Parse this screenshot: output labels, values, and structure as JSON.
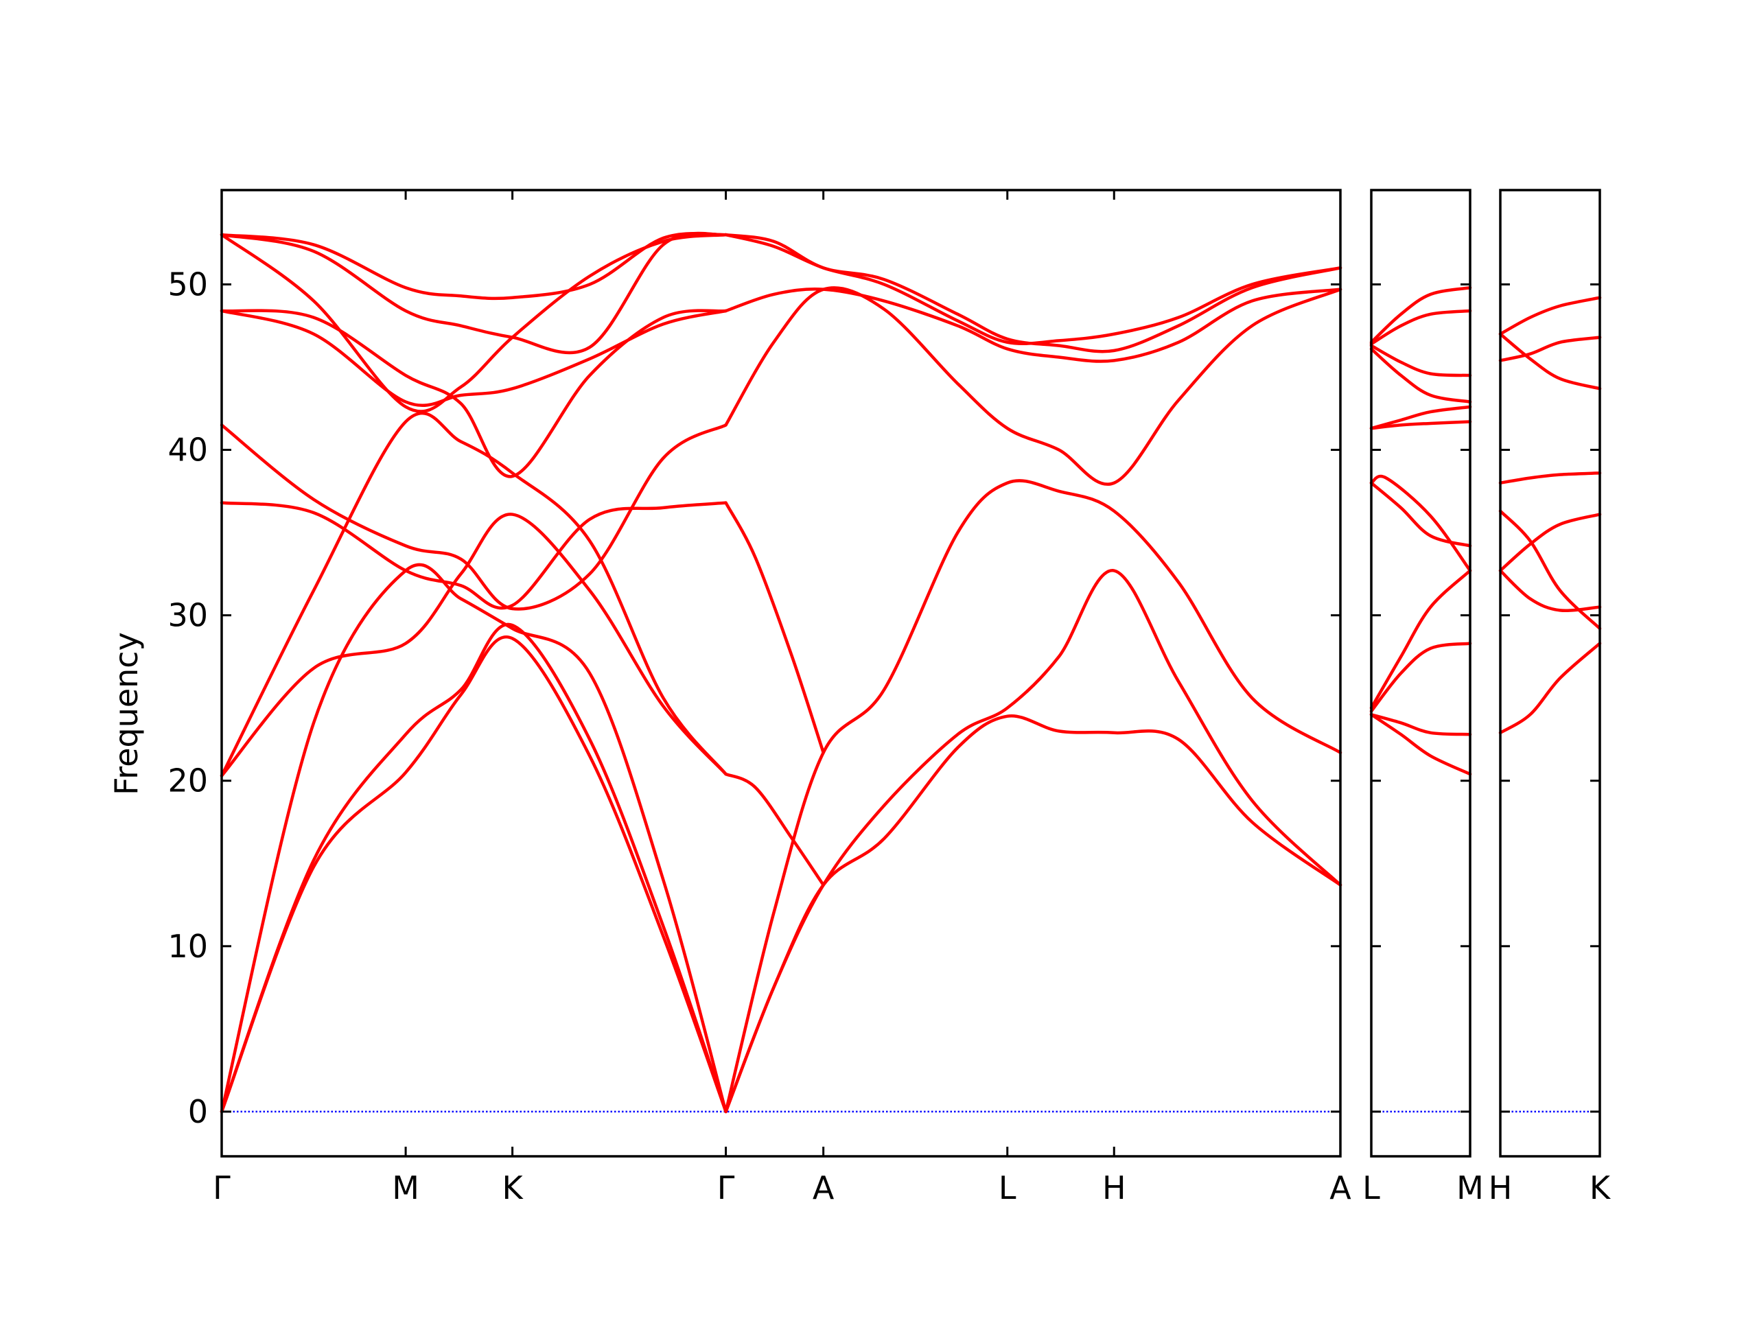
{
  "chart_data": {
    "type": "line",
    "ylabel": "Frequency",
    "ylim": [
      -2.7,
      55.7
    ],
    "yticks": [
      0,
      10,
      20,
      30,
      40,
      50
    ],
    "grid": false,
    "legend": "none",
    "colors": {
      "bands": "#ff0000",
      "zero_line": "#0000ff",
      "frame": "#000000"
    },
    "panels": [
      {
        "name": "main",
        "xlim": [
          0,
          6.08
        ],
        "ticks": [
          {
            "label": "Γ",
            "x": 0
          },
          {
            "label": "M",
            "x": 1.0
          },
          {
            "label": "K",
            "x": 1.58
          },
          {
            "label": "Γ",
            "x": 2.74
          },
          {
            "label": "A",
            "x": 3.27
          },
          {
            "label": "L",
            "x": 4.27
          },
          {
            "label": "H",
            "x": 4.85
          },
          {
            "label": "A",
            "x": 6.08
          }
        ],
        "bands": [
          {
            "x": [
              0,
              0.5,
              1.0,
              1.3,
              1.58,
              2.0,
              2.4,
              2.74
            ],
            "y": [
              0,
              14.8,
              20.5,
              25.2,
              28.6,
              21.5,
              10.6,
              0
            ]
          },
          {
            "x": [
              0,
              0.5,
              1.0,
              1.3,
              1.58,
              2.0,
              2.4,
              2.74
            ],
            "y": [
              0,
              15.2,
              22.8,
              25.5,
              29.4,
              22.5,
              11.2,
              0
            ]
          },
          {
            "x": [
              0,
              0.5,
              1.0,
              1.3,
              1.58,
              2.0,
              2.4,
              2.74
            ],
            "y": [
              0,
              23.5,
              32.7,
              31.0,
              29.2,
              26.5,
              14.0,
              0
            ]
          },
          {
            "x": [
              0,
              0.5,
              1.0,
              1.3,
              1.58,
              2.0,
              2.4,
              2.74
            ],
            "y": [
              20.3,
              26.8,
              28.3,
              32.5,
              36.1,
              31.5,
              24.5,
              20.4
            ]
          },
          {
            "x": [
              0,
              0.5,
              1.0,
              1.3,
              1.58,
              2.0,
              2.4,
              2.74
            ],
            "y": [
              20.3,
              31.5,
              41.7,
              40.5,
              38.6,
              34.5,
              25.0,
              20.4
            ]
          },
          {
            "x": [
              0,
              0.5,
              1.0,
              1.3,
              1.58,
              2.0,
              2.4,
              2.74
            ],
            "y": [
              36.8,
              36.2,
              32.7,
              31.8,
              30.6,
              35.8,
              36.5,
              36.8
            ]
          },
          {
            "x": [
              0,
              0.5,
              1.0,
              1.3,
              1.58,
              2.0,
              2.4,
              2.74
            ],
            "y": [
              41.5,
              37.0,
              34.2,
              33.4,
              30.4,
              32.5,
              39.5,
              41.5
            ]
          },
          {
            "x": [
              0,
              0.5,
              1.0,
              1.3,
              1.58,
              2.0,
              2.4,
              2.74
            ],
            "y": [
              48.4,
              47.0,
              42.9,
              43.3,
              43.7,
              45.5,
              47.6,
              48.4
            ]
          },
          {
            "x": [
              0,
              0.5,
              1.0,
              1.3,
              1.58,
              2.0,
              2.4,
              2.74
            ],
            "y": [
              48.4,
              48.0,
              44.5,
              42.8,
              38.4,
              44.5,
              48.0,
              48.4
            ]
          },
          {
            "x": [
              0,
              0.5,
              1.0,
              1.3,
              1.58,
              2.0,
              2.4,
              2.74
            ],
            "y": [
              53.0,
              49.0,
              42.6,
              43.8,
              46.8,
              50.5,
              52.6,
              53.0
            ]
          },
          {
            "x": [
              0,
              0.5,
              1.0,
              1.3,
              1.58,
              2.0,
              2.4,
              2.74
            ],
            "y": [
              53.0,
              52.0,
              48.4,
              47.5,
              46.8,
              46.2,
              52.4,
              53.0
            ]
          },
          {
            "x": [
              0,
              0.5,
              1.0,
              1.3,
              1.58,
              2.0,
              2.4,
              2.74
            ],
            "y": [
              53.0,
              52.4,
              49.8,
              49.3,
              49.2,
              50.0,
              52.8,
              53.0
            ]
          },
          {
            "x": [
              2.74,
              3.0,
              3.27,
              3.6,
              4.0,
              4.27,
              4.55,
              4.85,
              5.2,
              5.6,
              6.08
            ],
            "y": [
              0,
              7.5,
              13.7,
              16.5,
              22.0,
              23.9,
              23.0,
              22.9,
              22.5,
              17.5,
              13.7
            ]
          },
          {
            "x": [
              2.74,
              3.0,
              3.27,
              3.6,
              4.0,
              4.27,
              4.55,
              4.85,
              5.2,
              5.6,
              6.08
            ],
            "y": [
              0,
              7.5,
              13.7,
              18.5,
              22.8,
              24.4,
              27.5,
              32.7,
              26.0,
              18.8,
              13.7
            ]
          },
          {
            "x": [
              2.74,
              3.0,
              3.27,
              3.6,
              4.0,
              4.27,
              4.55,
              4.85,
              5.2,
              5.6,
              6.08
            ],
            "y": [
              0,
              12.0,
              21.7,
              25.5,
              35.0,
              38.0,
              37.5,
              36.3,
              32.0,
              25.0,
              21.7
            ]
          },
          {
            "x": [
              2.74,
              2.9,
              3.1,
              3.27
            ],
            "y": [
              20.4,
              19.6,
              16.5,
              13.7
            ]
          },
          {
            "x": [
              2.74,
              2.9,
              3.1,
              3.27
            ],
            "y": [
              36.8,
              33.5,
              27.5,
              21.7
            ]
          },
          {
            "x": [
              2.74,
              3.0,
              3.27,
              3.6,
              4.0,
              4.27,
              4.55,
              4.85,
              5.2,
              5.6,
              6.08
            ],
            "y": [
              41.5,
              46.5,
              49.7,
              48.5,
              44.0,
              41.3,
              40.0,
              38.0,
              43.0,
              47.5,
              49.7
            ]
          },
          {
            "x": [
              2.74,
              3.0,
              3.27,
              3.6,
              4.0,
              4.27,
              4.55,
              4.85,
              5.2,
              5.6,
              6.08
            ],
            "y": [
              48.4,
              49.4,
              49.7,
              49.0,
              47.5,
              46.1,
              45.6,
              45.4,
              46.5,
              49.0,
              49.7
            ]
          },
          {
            "x": [
              2.74,
              3.0,
              3.27,
              3.6,
              4.0,
              4.27,
              4.55,
              4.85,
              5.2,
              5.6,
              6.08
            ],
            "y": [
              53.0,
              52.3,
              51.0,
              50.0,
              47.8,
              46.5,
              46.6,
              47.0,
              48.0,
              50.0,
              51.0
            ]
          },
          {
            "x": [
              2.74,
              3.0,
              3.27,
              3.6,
              4.0,
              4.27,
              4.55,
              4.85,
              5.2,
              5.6,
              6.08
            ],
            "y": [
              53.0,
              52.6,
              51.0,
              50.3,
              48.2,
              46.7,
              46.3,
              46.0,
              47.5,
              49.8,
              51.0
            ]
          }
        ]
      },
      {
        "name": "L-M",
        "xlim": [
          0,
          1
        ],
        "ticks": [
          {
            "label": "L",
            "x": 0
          },
          {
            "label": "M",
            "x": 1
          }
        ],
        "bands": [
          {
            "x": [
              0,
              0.3,
              0.6,
              1.0
            ],
            "y": [
              24.0,
              22.8,
              21.5,
              20.4
            ]
          },
          {
            "x": [
              0,
              0.3,
              0.6,
              1.0
            ],
            "y": [
              24.0,
              23.5,
              22.9,
              22.8
            ]
          },
          {
            "x": [
              0,
              0.3,
              0.6,
              1.0
            ],
            "y": [
              24.2,
              26.5,
              28.0,
              28.3
            ]
          },
          {
            "x": [
              0,
              0.3,
              0.6,
              1.0
            ],
            "y": [
              24.4,
              27.5,
              30.5,
              32.7
            ]
          },
          {
            "x": [
              0,
              0.3,
              0.6,
              1.0
            ],
            "y": [
              38.0,
              36.5,
              34.8,
              34.2
            ]
          },
          {
            "x": [
              0,
              0.15,
              0.6,
              1.0
            ],
            "y": [
              38.0,
              38.3,
              36.0,
              32.7
            ]
          },
          {
            "x": [
              0,
              0.3,
              0.6,
              1.0
            ],
            "y": [
              41.3,
              41.5,
              41.6,
              41.7
            ]
          },
          {
            "x": [
              0,
              0.3,
              0.6,
              1.0
            ],
            "y": [
              41.3,
              41.8,
              42.3,
              42.6
            ]
          },
          {
            "x": [
              0,
              0.3,
              0.6,
              1.0
            ],
            "y": [
              46.1,
              44.5,
              43.3,
              42.9
            ]
          },
          {
            "x": [
              0,
              0.3,
              0.6,
              1.0
            ],
            "y": [
              46.3,
              45.3,
              44.6,
              44.5
            ]
          },
          {
            "x": [
              0,
              0.3,
              0.6,
              1.0
            ],
            "y": [
              46.4,
              47.5,
              48.2,
              48.4
            ]
          },
          {
            "x": [
              0,
              0.3,
              0.6,
              1.0
            ],
            "y": [
              46.5,
              48.2,
              49.4,
              49.8
            ]
          }
        ]
      },
      {
        "name": "H-K",
        "xlim": [
          0,
          1
        ],
        "ticks": [
          {
            "label": "H",
            "x": 0
          },
          {
            "label": "K",
            "x": 1
          }
        ],
        "bands": [
          {
            "x": [
              0,
              0.3,
              0.6,
              1.0
            ],
            "y": [
              22.9,
              24.0,
              26.2,
              28.3
            ]
          },
          {
            "x": [
              0,
              0.3,
              0.6,
              1.0
            ],
            "y": [
              32.7,
              31.0,
              30.3,
              30.5
            ]
          },
          {
            "x": [
              0,
              0.3,
              0.6,
              1.0
            ],
            "y": [
              32.7,
              34.3,
              35.5,
              36.1
            ]
          },
          {
            "x": [
              0,
              0.3,
              0.6,
              1.0
            ],
            "y": [
              36.3,
              34.5,
              31.5,
              29.2
            ]
          },
          {
            "x": [
              0,
              0.3,
              0.6,
              1.0
            ],
            "y": [
              38.0,
              38.3,
              38.5,
              38.6
            ]
          },
          {
            "x": [
              0,
              0.3,
              0.6,
              1.0
            ],
            "y": [
              45.4,
              45.8,
              46.5,
              46.8
            ]
          },
          {
            "x": [
              0,
              0.3,
              0.6,
              1.0
            ],
            "y": [
              47.0,
              45.5,
              44.3,
              43.7
            ]
          },
          {
            "x": [
              0,
              0.3,
              0.6,
              1.0
            ],
            "y": [
              47.0,
              48.0,
              48.7,
              49.2
            ]
          }
        ]
      }
    ]
  }
}
